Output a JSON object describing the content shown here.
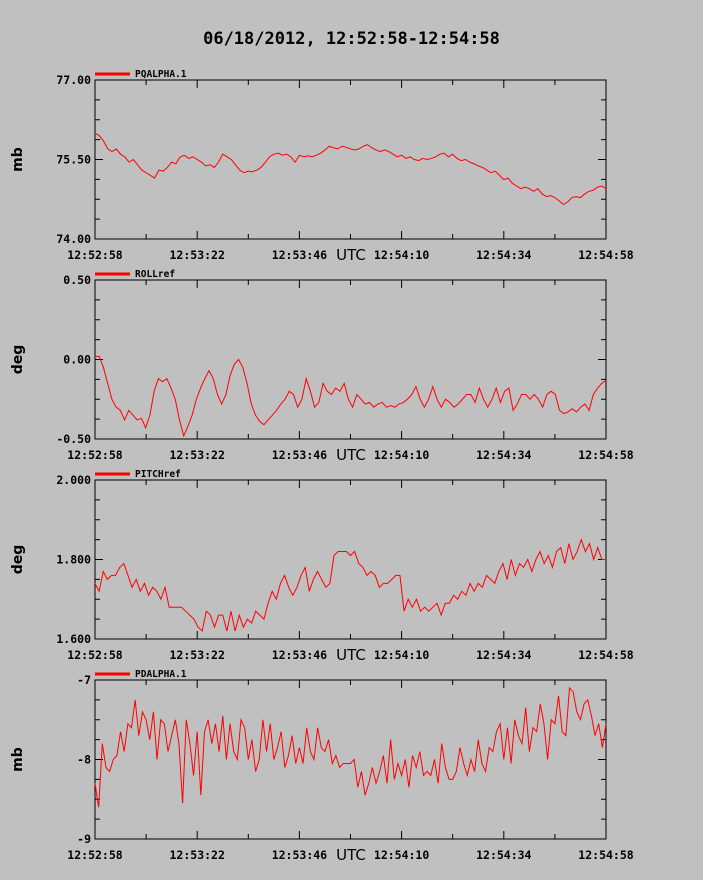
{
  "title": "06/18/2012, 12:52:58-12:54:58",
  "colors": {
    "background": "#c0c0c0",
    "line": "#ff0000",
    "axis": "#000000"
  },
  "chart_data": [
    {
      "type": "line",
      "legend": "PQALPHA.1",
      "ylabel": "mb",
      "xlabel": "UTC",
      "ylim": [
        74.0,
        77.0
      ],
      "ytick_labels": [
        "74.00",
        "75.50",
        "77.00"
      ],
      "xtick_labels": [
        "12:52:58",
        "12:53:22",
        "12:53:46",
        "12:54:10",
        "12:54:34",
        "12:54:58"
      ],
      "xlim_seconds_from_start": [
        0,
        120
      ],
      "series": [
        {
          "values": [
            76.0,
            75.95,
            75.85,
            75.7,
            75.65,
            75.7,
            75.6,
            75.55,
            75.45,
            75.5,
            75.4,
            75.3,
            75.25,
            75.2,
            75.15,
            75.3,
            75.28,
            75.35,
            75.45,
            75.42,
            75.55,
            75.58,
            75.52,
            75.55,
            75.5,
            75.45,
            75.38,
            75.4,
            75.35,
            75.45,
            75.6,
            75.55,
            75.5,
            75.4,
            75.3,
            75.25,
            75.28,
            75.27,
            75.3,
            75.35,
            75.45,
            75.55,
            75.6,
            75.62,
            75.58,
            75.6,
            75.55,
            75.45,
            75.58,
            75.55,
            75.57,
            75.55,
            75.58,
            75.62,
            75.68,
            75.75,
            75.72,
            75.7,
            75.75,
            75.73,
            75.7,
            75.68,
            75.7,
            75.75,
            75.78,
            75.72,
            75.68,
            75.65,
            75.68,
            75.65,
            75.6,
            75.55,
            75.58,
            75.52,
            75.55,
            75.5,
            75.48,
            75.52,
            75.5,
            75.52,
            75.55,
            75.6,
            75.62,
            75.55,
            75.6,
            75.52,
            75.48,
            75.5,
            75.45,
            75.42,
            75.38,
            75.35,
            75.3,
            75.25,
            75.28,
            75.2,
            75.12,
            75.15,
            75.05,
            75.0,
            74.95,
            74.98,
            74.95,
            74.9,
            74.95,
            74.85,
            74.8,
            74.82,
            74.78,
            74.72,
            74.65,
            74.7,
            74.78,
            74.8,
            74.78,
            74.85,
            74.9,
            74.92,
            74.98,
            75.0,
            74.95
          ]
        }
      ]
    },
    {
      "type": "line",
      "legend": "ROLLref",
      "ylabel": "deg",
      "xlabel": "UTC",
      "ylim": [
        -0.5,
        0.5
      ],
      "ytick_labels": [
        "-0.50",
        "0.00",
        "0.50"
      ],
      "xtick_labels": [
        "12:52:58",
        "12:53:22",
        "12:53:46",
        "12:54:10",
        "12:54:34",
        "12:54:58"
      ],
      "xlim_seconds_from_start": [
        0,
        120
      ],
      "series": [
        {
          "values": [
            0.02,
            0.02,
            -0.05,
            -0.15,
            -0.25,
            -0.3,
            -0.32,
            -0.38,
            -0.32,
            -0.35,
            -0.38,
            -0.37,
            -0.43,
            -0.35,
            -0.2,
            -0.12,
            -0.14,
            -0.12,
            -0.18,
            -0.25,
            -0.38,
            -0.48,
            -0.42,
            -0.35,
            -0.25,
            -0.18,
            -0.12,
            -0.07,
            -0.12,
            -0.22,
            -0.28,
            -0.22,
            -0.1,
            -0.03,
            0.0,
            -0.05,
            -0.15,
            -0.28,
            -0.35,
            -0.39,
            -0.41,
            -0.38,
            -0.35,
            -0.32,
            -0.28,
            -0.25,
            -0.2,
            -0.22,
            -0.3,
            -0.25,
            -0.12,
            -0.2,
            -0.3,
            -0.27,
            -0.15,
            -0.2,
            -0.22,
            -0.18,
            -0.2,
            -0.15,
            -0.25,
            -0.3,
            -0.22,
            -0.25,
            -0.28,
            -0.27,
            -0.3,
            -0.28,
            -0.27,
            -0.3,
            -0.29,
            -0.3,
            -0.28,
            -0.27,
            -0.25,
            -0.22,
            -0.17,
            -0.25,
            -0.3,
            -0.25,
            -0.17,
            -0.25,
            -0.3,
            -0.25,
            -0.27,
            -0.3,
            -0.28,
            -0.25,
            -0.22,
            -0.22,
            -0.27,
            -0.18,
            -0.25,
            -0.3,
            -0.25,
            -0.18,
            -0.27,
            -0.2,
            -0.18,
            -0.32,
            -0.28,
            -0.22,
            -0.22,
            -0.25,
            -0.22,
            -0.25,
            -0.3,
            -0.22,
            -0.2,
            -0.22,
            -0.32,
            -0.34,
            -0.33,
            -0.31,
            -0.33,
            -0.3,
            -0.28,
            -0.32,
            -0.22,
            -0.18,
            -0.15,
            -0.13
          ]
        }
      ]
    },
    {
      "type": "line",
      "legend": "PITCHref",
      "ylabel": "deg",
      "xlabel": "UTC",
      "ylim": [
        1.6,
        2.0
      ],
      "ytick_labels": [
        "1.600",
        "1.800",
        "2.000"
      ],
      "xtick_labels": [
        "12:52:58",
        "12:53:22",
        "12:53:46",
        "12:54:10",
        "12:54:34",
        "12:54:58"
      ],
      "xlim_seconds_from_start": [
        0,
        120
      ],
      "series": [
        {
          "values": [
            1.74,
            1.72,
            1.77,
            1.75,
            1.76,
            1.76,
            1.78,
            1.79,
            1.76,
            1.73,
            1.75,
            1.72,
            1.74,
            1.71,
            1.73,
            1.72,
            1.7,
            1.73,
            1.68,
            1.68,
            1.68,
            1.68,
            1.67,
            1.66,
            1.65,
            1.63,
            1.62,
            1.67,
            1.66,
            1.63,
            1.66,
            1.66,
            1.62,
            1.67,
            1.62,
            1.66,
            1.63,
            1.65,
            1.64,
            1.67,
            1.66,
            1.65,
            1.69,
            1.72,
            1.7,
            1.74,
            1.76,
            1.73,
            1.71,
            1.73,
            1.76,
            1.78,
            1.72,
            1.75,
            1.77,
            1.75,
            1.73,
            1.74,
            1.81,
            1.82,
            1.82,
            1.82,
            1.81,
            1.82,
            1.79,
            1.78,
            1.76,
            1.77,
            1.76,
            1.73,
            1.74,
            1.74,
            1.75,
            1.76,
            1.76,
            1.67,
            1.7,
            1.68,
            1.7,
            1.67,
            1.68,
            1.67,
            1.68,
            1.69,
            1.66,
            1.69,
            1.69,
            1.71,
            1.7,
            1.72,
            1.71,
            1.74,
            1.72,
            1.74,
            1.73,
            1.76,
            1.75,
            1.74,
            1.77,
            1.79,
            1.75,
            1.8,
            1.76,
            1.79,
            1.78,
            1.8,
            1.77,
            1.8,
            1.82,
            1.79,
            1.81,
            1.78,
            1.82,
            1.83,
            1.79,
            1.84,
            1.8,
            1.82,
            1.85,
            1.82,
            1.84,
            1.8,
            1.83,
            1.8,
            1.8
          ]
        }
      ]
    },
    {
      "type": "line",
      "legend": "PDALPHA.1",
      "ylabel": "mb",
      "xlabel": "UTC",
      "ylim": [
        -9,
        -7
      ],
      "ytick_labels": [
        "-9",
        "-8",
        "-7"
      ],
      "xtick_labels": [
        "12:52:58",
        "12:53:22",
        "12:53:46",
        "12:54:10",
        "12:54:34",
        "12:54:58"
      ],
      "xlim_seconds_from_start": [
        0,
        120
      ],
      "series": [
        {
          "values": [
            -8.3,
            -8.6,
            -7.8,
            -8.1,
            -8.15,
            -8.0,
            -7.95,
            -7.65,
            -7.9,
            -7.55,
            -7.6,
            -7.25,
            -7.7,
            -7.4,
            -7.5,
            -7.75,
            -7.4,
            -8.0,
            -7.5,
            -7.55,
            -7.9,
            -7.7,
            -7.5,
            -7.8,
            -8.55,
            -7.5,
            -7.8,
            -8.2,
            -7.65,
            -8.45,
            -7.65,
            -7.5,
            -7.8,
            -7.55,
            -7.9,
            -7.45,
            -8.0,
            -7.55,
            -7.9,
            -8.0,
            -7.5,
            -7.6,
            -8.0,
            -7.75,
            -8.15,
            -8.0,
            -7.5,
            -7.9,
            -7.55,
            -8.0,
            -7.85,
            -7.65,
            -8.1,
            -7.95,
            -7.7,
            -8.05,
            -7.85,
            -8.05,
            -7.6,
            -7.9,
            -8.0,
            -7.6,
            -7.85,
            -7.9,
            -7.75,
            -8.05,
            -7.95,
            -8.1,
            -8.05,
            -8.05,
            -8.05,
            -8.0,
            -8.35,
            -8.15,
            -8.45,
            -8.3,
            -8.1,
            -8.3,
            -8.15,
            -7.95,
            -8.3,
            -7.75,
            -8.25,
            -8.05,
            -8.2,
            -8.0,
            -8.35,
            -7.95,
            -8.1,
            -7.9,
            -8.2,
            -8.15,
            -8.2,
            -8.0,
            -8.3,
            -7.8,
            -8.1,
            -8.25,
            -8.25,
            -8.15,
            -7.85,
            -8.05,
            -8.2,
            -8.0,
            -8.15,
            -7.75,
            -8.05,
            -8.15,
            -7.85,
            -7.9,
            -7.65,
            -7.55,
            -8.0,
            -7.6,
            -8.05,
            -7.5,
            -7.7,
            -7.8,
            -7.35,
            -7.9,
            -7.6,
            -7.65,
            -7.3,
            -7.55,
            -8.0,
            -7.5,
            -7.55,
            -7.2,
            -7.65,
            -7.7,
            -7.1,
            -7.15,
            -7.4,
            -7.5,
            -7.3,
            -7.25,
            -7.45,
            -7.7,
            -7.55,
            -7.85,
            -7.55
          ]
        }
      ]
    }
  ]
}
